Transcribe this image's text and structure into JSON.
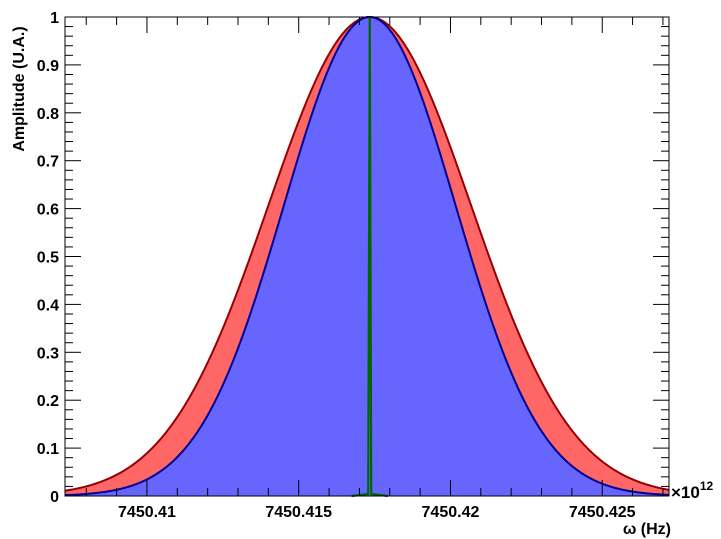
{
  "chart_data": {
    "type": "area",
    "xlabel": "ω (Hz)",
    "ylabel": "Amplitude (U.A.)",
    "x_multiplier": "×10",
    "x_multiplier_exponent": "12",
    "xlim": [
      7450.4073,
      7450.4272
    ],
    "ylim": [
      0,
      1
    ],
    "x_tick_labels": [
      "7450.41",
      "7450.415",
      "7450.42",
      "7450.425"
    ],
    "x_tick_values": [
      7450.41,
      7450.415,
      7450.42,
      7450.425
    ],
    "y_tick_labels": [
      "0",
      "0.1",
      "0.2",
      "0.3",
      "0.4",
      "0.5",
      "0.6",
      "0.7",
      "0.8",
      "0.9",
      "1"
    ],
    "y_tick_values": [
      0,
      0.1,
      0.2,
      0.3,
      0.4,
      0.5,
      0.6,
      0.7,
      0.8,
      0.9,
      1
    ],
    "series": [
      {
        "shape": "gaussian",
        "center": 7450.41734,
        "peak": 1.0,
        "sigma": 0.00334,
        "fill_color": "#ff6666",
        "line_color": "#990000"
      },
      {
        "shape": "gaussian",
        "center": 7450.41734,
        "peak": 1.0,
        "sigma": 0.00283,
        "fill_color": "#6666ff",
        "line_color": "#000099"
      },
      {
        "shape": "spike",
        "center": 7450.41734,
        "peak": 1.0,
        "base_halfwidth": 0.0006,
        "line_color": "#006600"
      }
    ],
    "grid": false,
    "legend": "none"
  }
}
